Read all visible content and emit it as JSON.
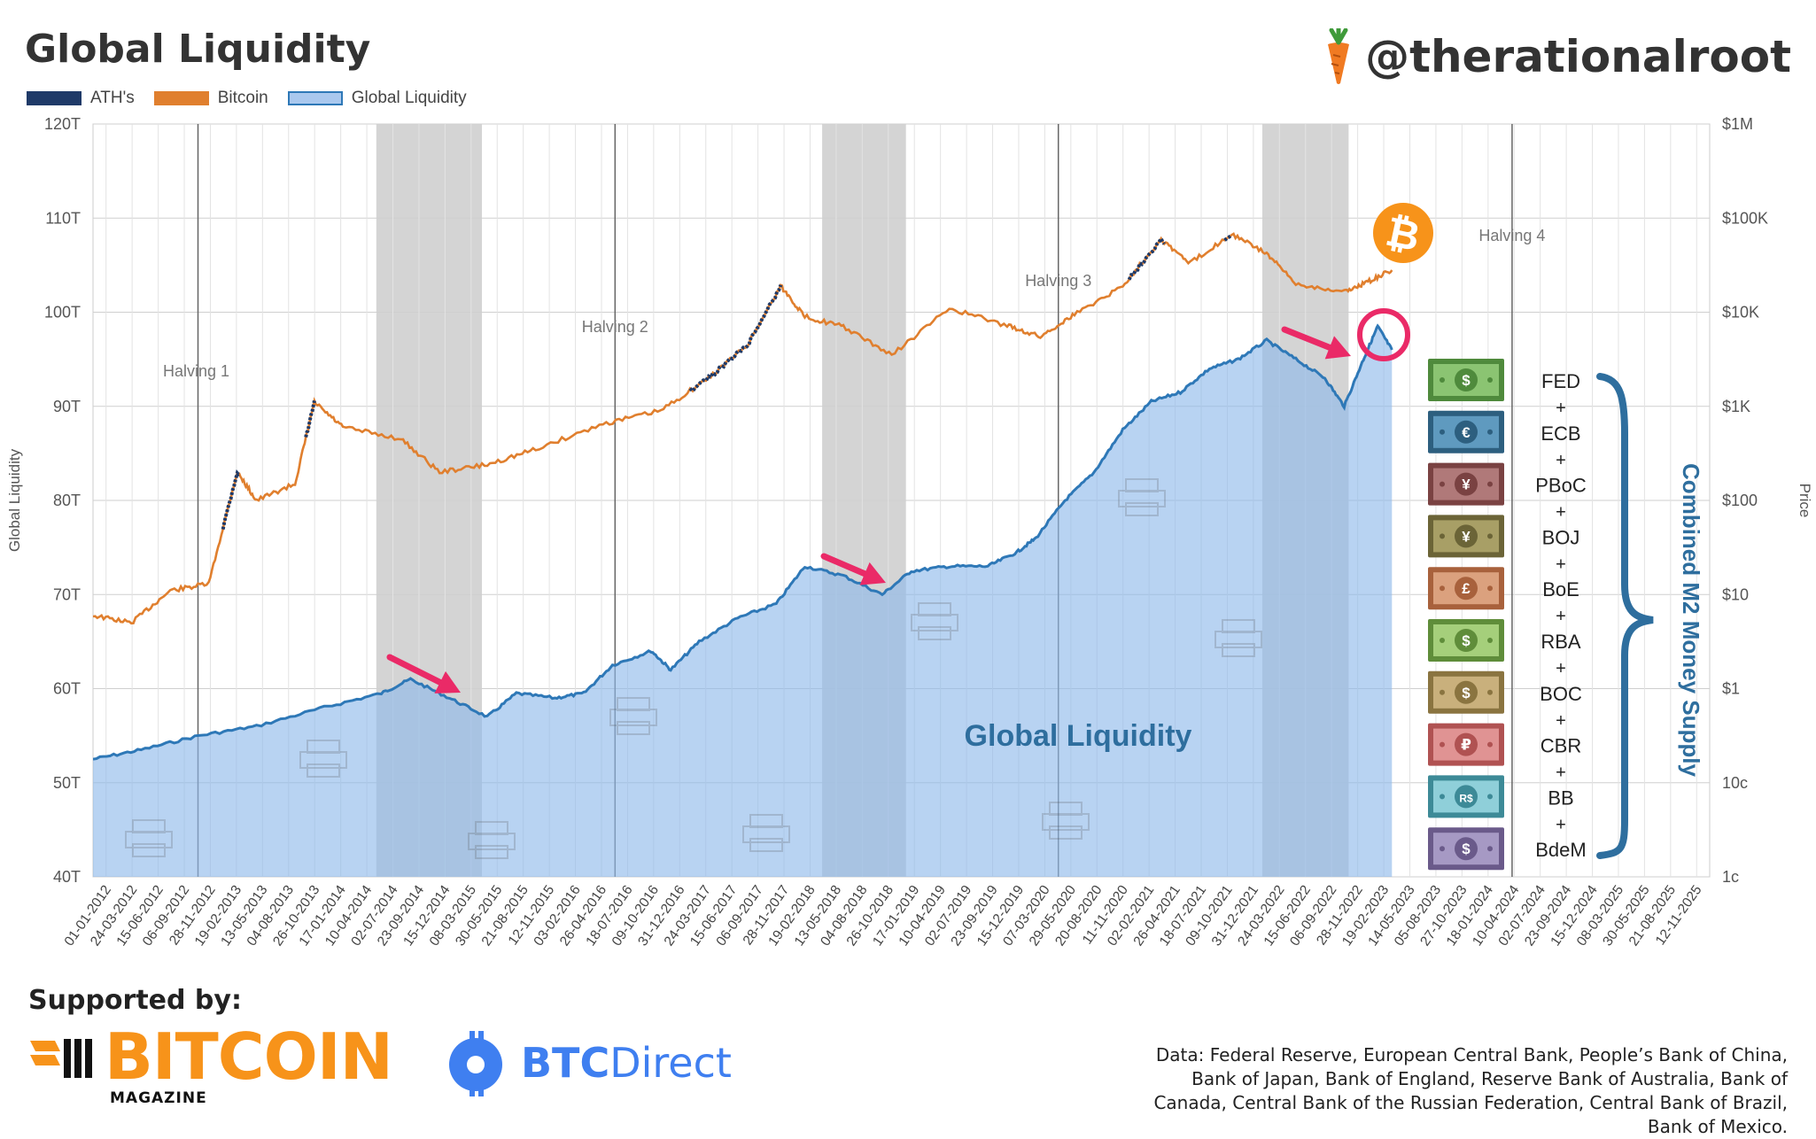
{
  "header": {
    "title": "Global Liquidity",
    "handle": "@therationalroot"
  },
  "legend": [
    {
      "label": "ATH's",
      "color": "#1f3a68"
    },
    {
      "label": "Bitcoin",
      "color": "#e07f2e"
    },
    {
      "label": "Global Liquidity",
      "color": "#aac8ee"
    }
  ],
  "chart_data": {
    "type": "area",
    "title": "Global Liquidity",
    "ylabel_left": "Global Liquidity",
    "ylabel_right": "Price",
    "left_axis": {
      "ticks": [
        "40T",
        "50T",
        "60T",
        "70T",
        "80T",
        "90T",
        "100T",
        "110T",
        "120T"
      ],
      "ylim": [
        40,
        120
      ],
      "unit": "T"
    },
    "right_axis": {
      "scale": "log",
      "ticks": [
        "1c",
        "10c",
        "$1",
        "$10",
        "$100",
        "$1K",
        "$10K",
        "$100K",
        "$1M"
      ],
      "ylim": [
        0.01,
        1000000
      ]
    },
    "x_tick_labels": [
      "01-01-2012",
      "24-03-2012",
      "15-06-2012",
      "06-09-2012",
      "28-11-2012",
      "19-02-2013",
      "13-05-2013",
      "04-08-2013",
      "26-10-2013",
      "17-01-2014",
      "10-04-2014",
      "02-07-2014",
      "23-09-2014",
      "15-12-2014",
      "08-03-2015",
      "30-05-2015",
      "21-08-2015",
      "12-11-2015",
      "03-02-2016",
      "26-04-2016",
      "18-07-2016",
      "09-10-2016",
      "31-12-2016",
      "24-03-2017",
      "15-06-2017",
      "06-09-2017",
      "28-11-2017",
      "19-02-2018",
      "13-05-2018",
      "04-08-2018",
      "26-10-2018",
      "17-01-2019",
      "10-04-2019",
      "02-07-2019",
      "23-09-2019",
      "15-12-2019",
      "07-03-2020",
      "29-05-2020",
      "20-08-2020",
      "11-11-2020",
      "02-02-2021",
      "26-04-2021",
      "18-07-2021",
      "09-10-2021",
      "31-12-2021",
      "24-03-2022",
      "15-06-2022",
      "06-09-2022",
      "28-11-2022",
      "19-02-2023",
      "14-05-2023",
      "05-08-2023",
      "27-10-2023",
      "18-01-2024",
      "10-04-2024",
      "02-07-2024",
      "23-09-2024",
      "15-12-2024",
      "08-03-2025",
      "30-05-2025",
      "21-08-2025",
      "12-11-2025"
    ],
    "x_range": [
      "2012-01-01",
      "2025-12-31"
    ],
    "grid": true,
    "legend_position": "top-left",
    "series": [
      {
        "name": "Global Liquidity",
        "unit": "T",
        "color": "#2e78b7",
        "points": [
          [
            "2012-01-01",
            52.5
          ],
          [
            "2012-06-01",
            53.5
          ],
          [
            "2012-12-01",
            55.0
          ],
          [
            "2013-06-01",
            56.0
          ],
          [
            "2014-01-01",
            58.0
          ],
          [
            "2014-07-01",
            59.5
          ],
          [
            "2014-10-01",
            61.0
          ],
          [
            "2015-02-01",
            59.0
          ],
          [
            "2015-06-01",
            57.0
          ],
          [
            "2015-09-01",
            59.5
          ],
          [
            "2016-01-01",
            59.0
          ],
          [
            "2016-04-01",
            59.5
          ],
          [
            "2016-07-01",
            62.5
          ],
          [
            "2016-11-01",
            64.0
          ],
          [
            "2017-01-01",
            62.0
          ],
          [
            "2017-04-01",
            65.0
          ],
          [
            "2017-08-01",
            67.5
          ],
          [
            "2017-12-01",
            69.0
          ],
          [
            "2018-03-01",
            73.0
          ],
          [
            "2018-07-01",
            72.0
          ],
          [
            "2018-11-01",
            70.0
          ],
          [
            "2019-02-01",
            72.5
          ],
          [
            "2019-06-01",
            73.0
          ],
          [
            "2019-10-01",
            73.0
          ],
          [
            "2020-01-01",
            74.5
          ],
          [
            "2020-03-01",
            76.0
          ],
          [
            "2020-06-01",
            80.0
          ],
          [
            "2020-09-01",
            83.0
          ],
          [
            "2020-12-01",
            87.5
          ],
          [
            "2021-03-01",
            90.5
          ],
          [
            "2021-06-01",
            91.5
          ],
          [
            "2021-09-01",
            94.0
          ],
          [
            "2021-12-01",
            95.0
          ],
          [
            "2022-03-01",
            97.0
          ],
          [
            "2022-06-01",
            95.0
          ],
          [
            "2022-09-01",
            93.0
          ],
          [
            "2022-11-01",
            90.0
          ],
          [
            "2023-01-01",
            95.0
          ],
          [
            "2023-02-15",
            98.5
          ],
          [
            "2023-04-01",
            96.0
          ]
        ]
      },
      {
        "name": "Bitcoin",
        "unit": "USD",
        "scale": "log",
        "color": "#e07f2e",
        "points": [
          [
            "2012-01-01",
            6
          ],
          [
            "2012-05-01",
            5
          ],
          [
            "2012-09-01",
            11
          ],
          [
            "2013-01-01",
            13
          ],
          [
            "2013-04-01",
            200
          ],
          [
            "2013-06-01",
            100
          ],
          [
            "2013-10-01",
            150
          ],
          [
            "2013-12-01",
            1100
          ],
          [
            "2014-03-01",
            600
          ],
          [
            "2014-09-01",
            450
          ],
          [
            "2015-01-01",
            200
          ],
          [
            "2015-06-01",
            240
          ],
          [
            "2015-11-01",
            350
          ],
          [
            "2016-06-01",
            650
          ],
          [
            "2016-12-01",
            900
          ],
          [
            "2017-05-01",
            2000
          ],
          [
            "2017-09-01",
            4500
          ],
          [
            "2017-12-15",
            19000
          ],
          [
            "2018-03-01",
            9000
          ],
          [
            "2018-07-01",
            7000
          ],
          [
            "2018-12-01",
            3500
          ],
          [
            "2019-06-01",
            11000
          ],
          [
            "2019-12-01",
            7200
          ],
          [
            "2020-03-15",
            5500
          ],
          [
            "2020-07-01",
            9500
          ],
          [
            "2020-12-01",
            19000
          ],
          [
            "2021-04-01",
            60000
          ],
          [
            "2021-07-01",
            33000
          ],
          [
            "2021-11-10",
            68000
          ],
          [
            "2022-03-01",
            42000
          ],
          [
            "2022-06-01",
            20000
          ],
          [
            "2022-11-01",
            16500
          ],
          [
            "2023-01-15",
            21000
          ],
          [
            "2023-04-01",
            28000
          ]
        ]
      }
    ],
    "ath_segments": [
      [
        "2013-02-15",
        "2013-04-10"
      ],
      [
        "2013-11-01",
        "2013-12-05"
      ],
      [
        "2017-03-01",
        "2017-12-17"
      ],
      [
        "2020-12-15",
        "2021-04-15"
      ],
      [
        "2021-10-15",
        "2021-11-10"
      ]
    ],
    "halvings": [
      {
        "label": "Halving 1",
        "date": "2012-11-28"
      },
      {
        "label": "Halving 2",
        "date": "2016-07-09"
      },
      {
        "label": "Halving 3",
        "date": "2020-05-11"
      },
      {
        "label": "Halving 4",
        "date": "2024-04-15"
      }
    ],
    "shaded_periods": [
      [
        "2014-06-15",
        "2015-05-15"
      ],
      [
        "2018-04-25",
        "2019-01-15"
      ],
      [
        "2022-02-15",
        "2022-11-15"
      ]
    ],
    "annotations": [
      "Global Liquidity",
      "Combined M2 Money Supply"
    ],
    "central_banks": [
      {
        "name": "FED",
        "symbol": "$",
        "color": "#4f8a3c",
        "inner": "#8bc472"
      },
      {
        "name": "ECB",
        "symbol": "€",
        "color": "#2d5f7f",
        "inner": "#5f9abf"
      },
      {
        "name": "PBoC",
        "symbol": "¥",
        "color": "#7a4242",
        "inner": "#b07979"
      },
      {
        "name": "BOJ",
        "symbol": "¥",
        "color": "#6b6437",
        "inner": "#a89f66"
      },
      {
        "name": "BoE",
        "symbol": "£",
        "color": "#a8613c",
        "inner": "#dba17e"
      },
      {
        "name": "RBA",
        "symbol": "$",
        "color": "#5f8d3a",
        "inner": "#a5cf7b"
      },
      {
        "name": "BOC",
        "symbol": "$",
        "color": "#8a7440",
        "inner": "#c9b07c"
      },
      {
        "name": "CBR",
        "symbol": "₽",
        "color": "#b05252",
        "inner": "#e09393"
      },
      {
        "name": "BB",
        "symbol": "R$",
        "color": "#3d8a97",
        "inner": "#8fcfd9"
      },
      {
        "name": "BdeM",
        "symbol": "$",
        "color": "#6a5a8a",
        "inner": "#a699c4"
      }
    ],
    "plus_label": "+"
  },
  "footer": {
    "supported_by": "Supported by:",
    "sponsor1": {
      "word": "BITCOIN",
      "sub": "MAGAZINE"
    },
    "sponsor2": {
      "bold": "BTC",
      "rest": "Direct"
    },
    "source": "Data: Federal Reserve, European Central Bank, People’s Bank of China, Bank of Japan, Bank of England, Reserve Bank of Australia, Bank of Canada, Central Bank of the Russian Federation, Central Bank of Brazil, Bank of Mexico."
  }
}
